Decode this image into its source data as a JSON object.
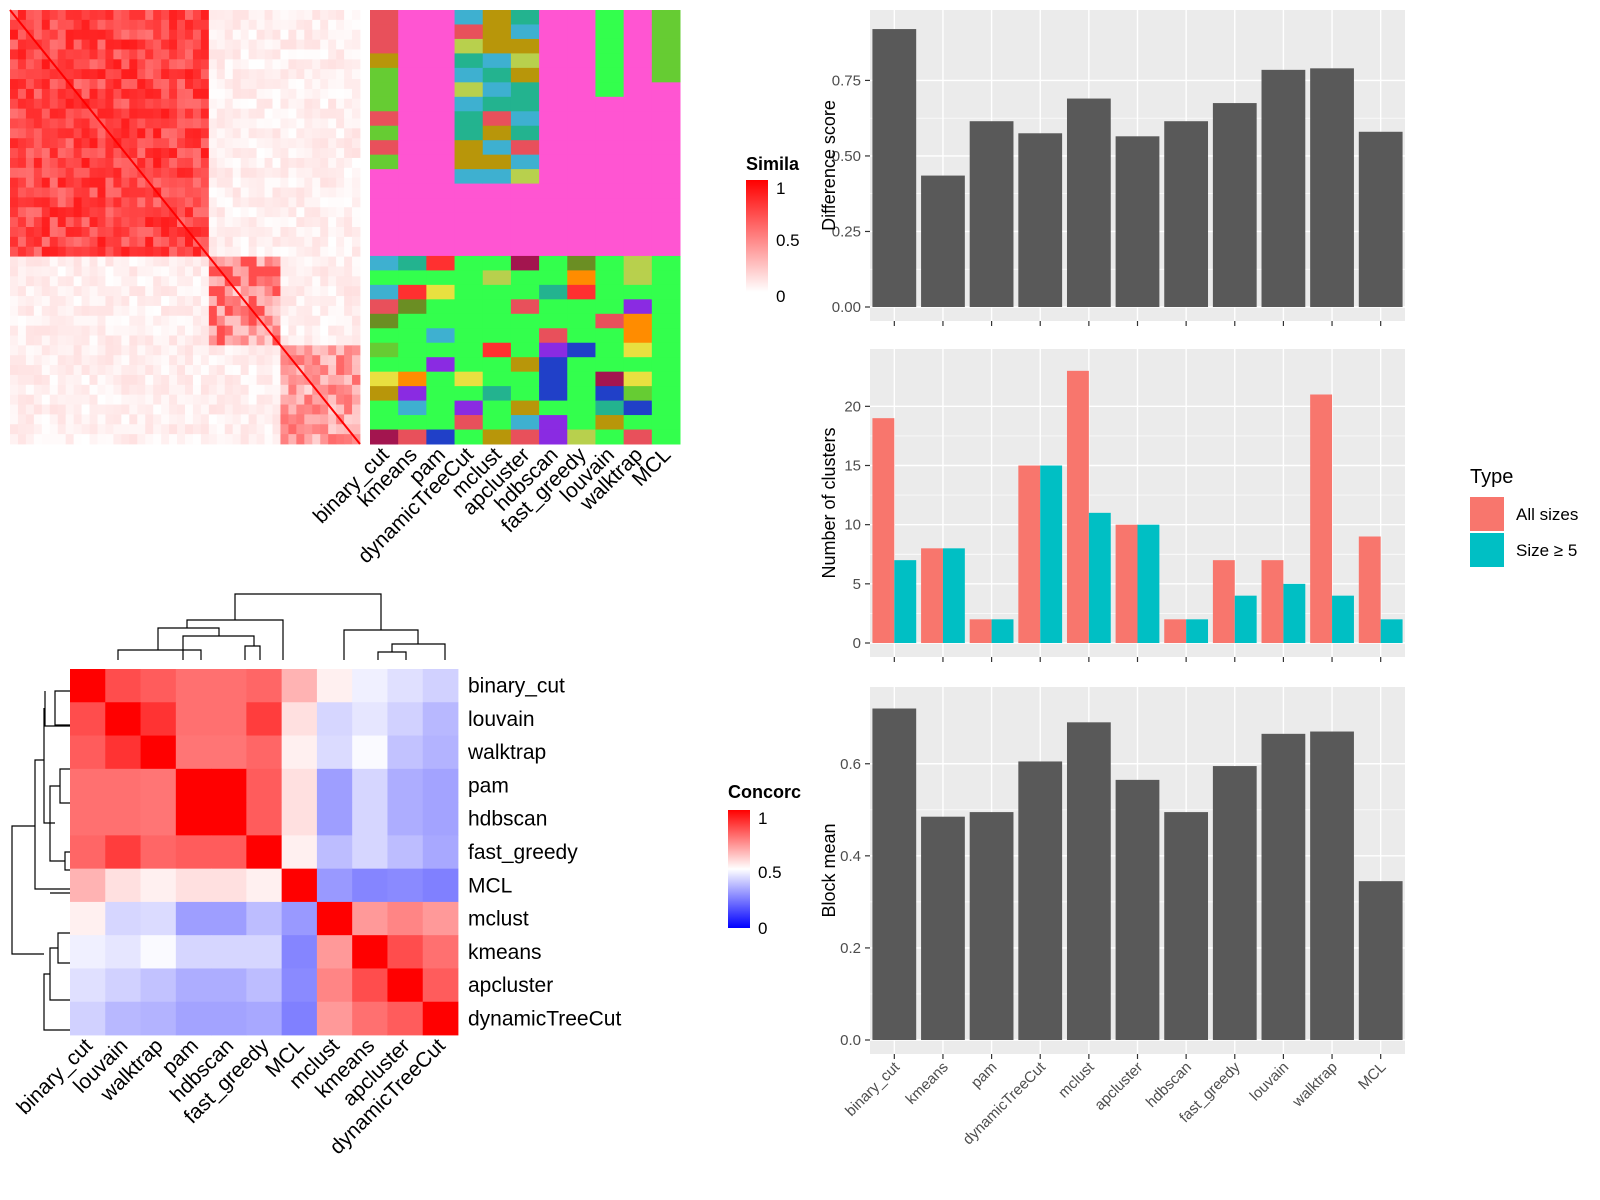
{
  "colors": {
    "panel_bg": "#ebebeb",
    "grid": "#ffffff",
    "bar": "#595959",
    "all_sizes": "#f8766d",
    "size_ge5": "#00bfc4",
    "sim_high": "#ff0000",
    "sim_low": "#ffffff",
    "conc_low": "#0000ff",
    "conc_mid": "#ffffff",
    "conc_high": "#ff0000",
    "cluster_palette": [
      "#ff55d2",
      "#33ff4d",
      "#66cc33",
      "#b8960a",
      "#e8505b",
      "#3eb0d0",
      "#b8d04d",
      "#8a2be2",
      "#a3154f",
      "#23b38f",
      "#6b8e23",
      "#2040c8",
      "#e8e040",
      "#ff8c00",
      "#ff3030"
    ]
  },
  "similarity_heatmap": {
    "legend_title": "Simila",
    "legend_ticks": [
      "1",
      "0.5",
      "0"
    ],
    "method_labels": [
      "binary_cut",
      "kmeans",
      "pam",
      "dynamicTreeCut",
      "mclust",
      "apcluster",
      "hdbscan",
      "fast_greedy",
      "louvain",
      "walktrap",
      "MCL"
    ]
  },
  "concordance_heatmap": {
    "legend_title": "Concorc",
    "legend_ticks": [
      "1",
      "0.5",
      "0"
    ],
    "row_labels": [
      "binary_cut",
      "louvain",
      "walktrap",
      "pam",
      "hdbscan",
      "fast_greedy",
      "MCL",
      "mclust",
      "kmeans",
      "apcluster",
      "dynamicTreeCut"
    ],
    "col_labels": [
      "binary_cut",
      "louvain",
      "walktrap",
      "pam",
      "hdbscan",
      "fast_greedy",
      "MCL",
      "mclust",
      "kmeans",
      "apcluster",
      "dynamicTreeCut"
    ]
  },
  "chart_data": [
    {
      "type": "bar",
      "categories": [
        "binary_cut",
        "kmeans",
        "pam",
        "dynamicTreeCut",
        "mclust",
        "apcluster",
        "hdbscan",
        "fast_greedy",
        "louvain",
        "walktrap",
        "MCL"
      ],
      "values": [
        0.92,
        0.435,
        0.615,
        0.575,
        0.69,
        0.565,
        0.615,
        0.675,
        0.785,
        0.79,
        0.58
      ],
      "title": "",
      "xlabel": "",
      "ylabel": "Difference score",
      "ylim": [
        0,
        0.95
      ],
      "yticks": [
        "0.00",
        "0.25",
        "0.50",
        "0.75"
      ],
      "grid": true
    },
    {
      "type": "bar",
      "categories": [
        "binary_cut",
        "kmeans",
        "pam",
        "dynamicTreeCut",
        "mclust",
        "apcluster",
        "hdbscan",
        "fast_greedy",
        "louvain",
        "walktrap",
        "MCL"
      ],
      "series": [
        {
          "name": "All sizes",
          "values": [
            19,
            8,
            2,
            15,
            23,
            10,
            2,
            7,
            7,
            21,
            9
          ]
        },
        {
          "name": "Size ≥ 5",
          "values": [
            7,
            8,
            2,
            15,
            11,
            10,
            2,
            4,
            5,
            4,
            2
          ]
        }
      ],
      "title": "",
      "xlabel": "",
      "ylabel": "Number of clusters",
      "ylim": [
        0,
        24
      ],
      "yticks": [
        "0",
        "5",
        "10",
        "15",
        "20"
      ],
      "legend_title": "Type",
      "legend_position": "right",
      "grid": true
    },
    {
      "type": "bar",
      "categories": [
        "binary_cut",
        "kmeans",
        "pam",
        "dynamicTreeCut",
        "mclust",
        "apcluster",
        "hdbscan",
        "fast_greedy",
        "louvain",
        "walktrap",
        "MCL"
      ],
      "values": [
        0.72,
        0.485,
        0.495,
        0.605,
        0.69,
        0.565,
        0.495,
        0.595,
        0.665,
        0.67,
        0.345
      ],
      "title": "",
      "xlabel": "",
      "ylabel": "Block mean",
      "ylim": [
        0,
        0.745
      ],
      "yticks": [
        "0.0",
        "0.2",
        "0.4",
        "0.6"
      ],
      "grid": true
    }
  ]
}
